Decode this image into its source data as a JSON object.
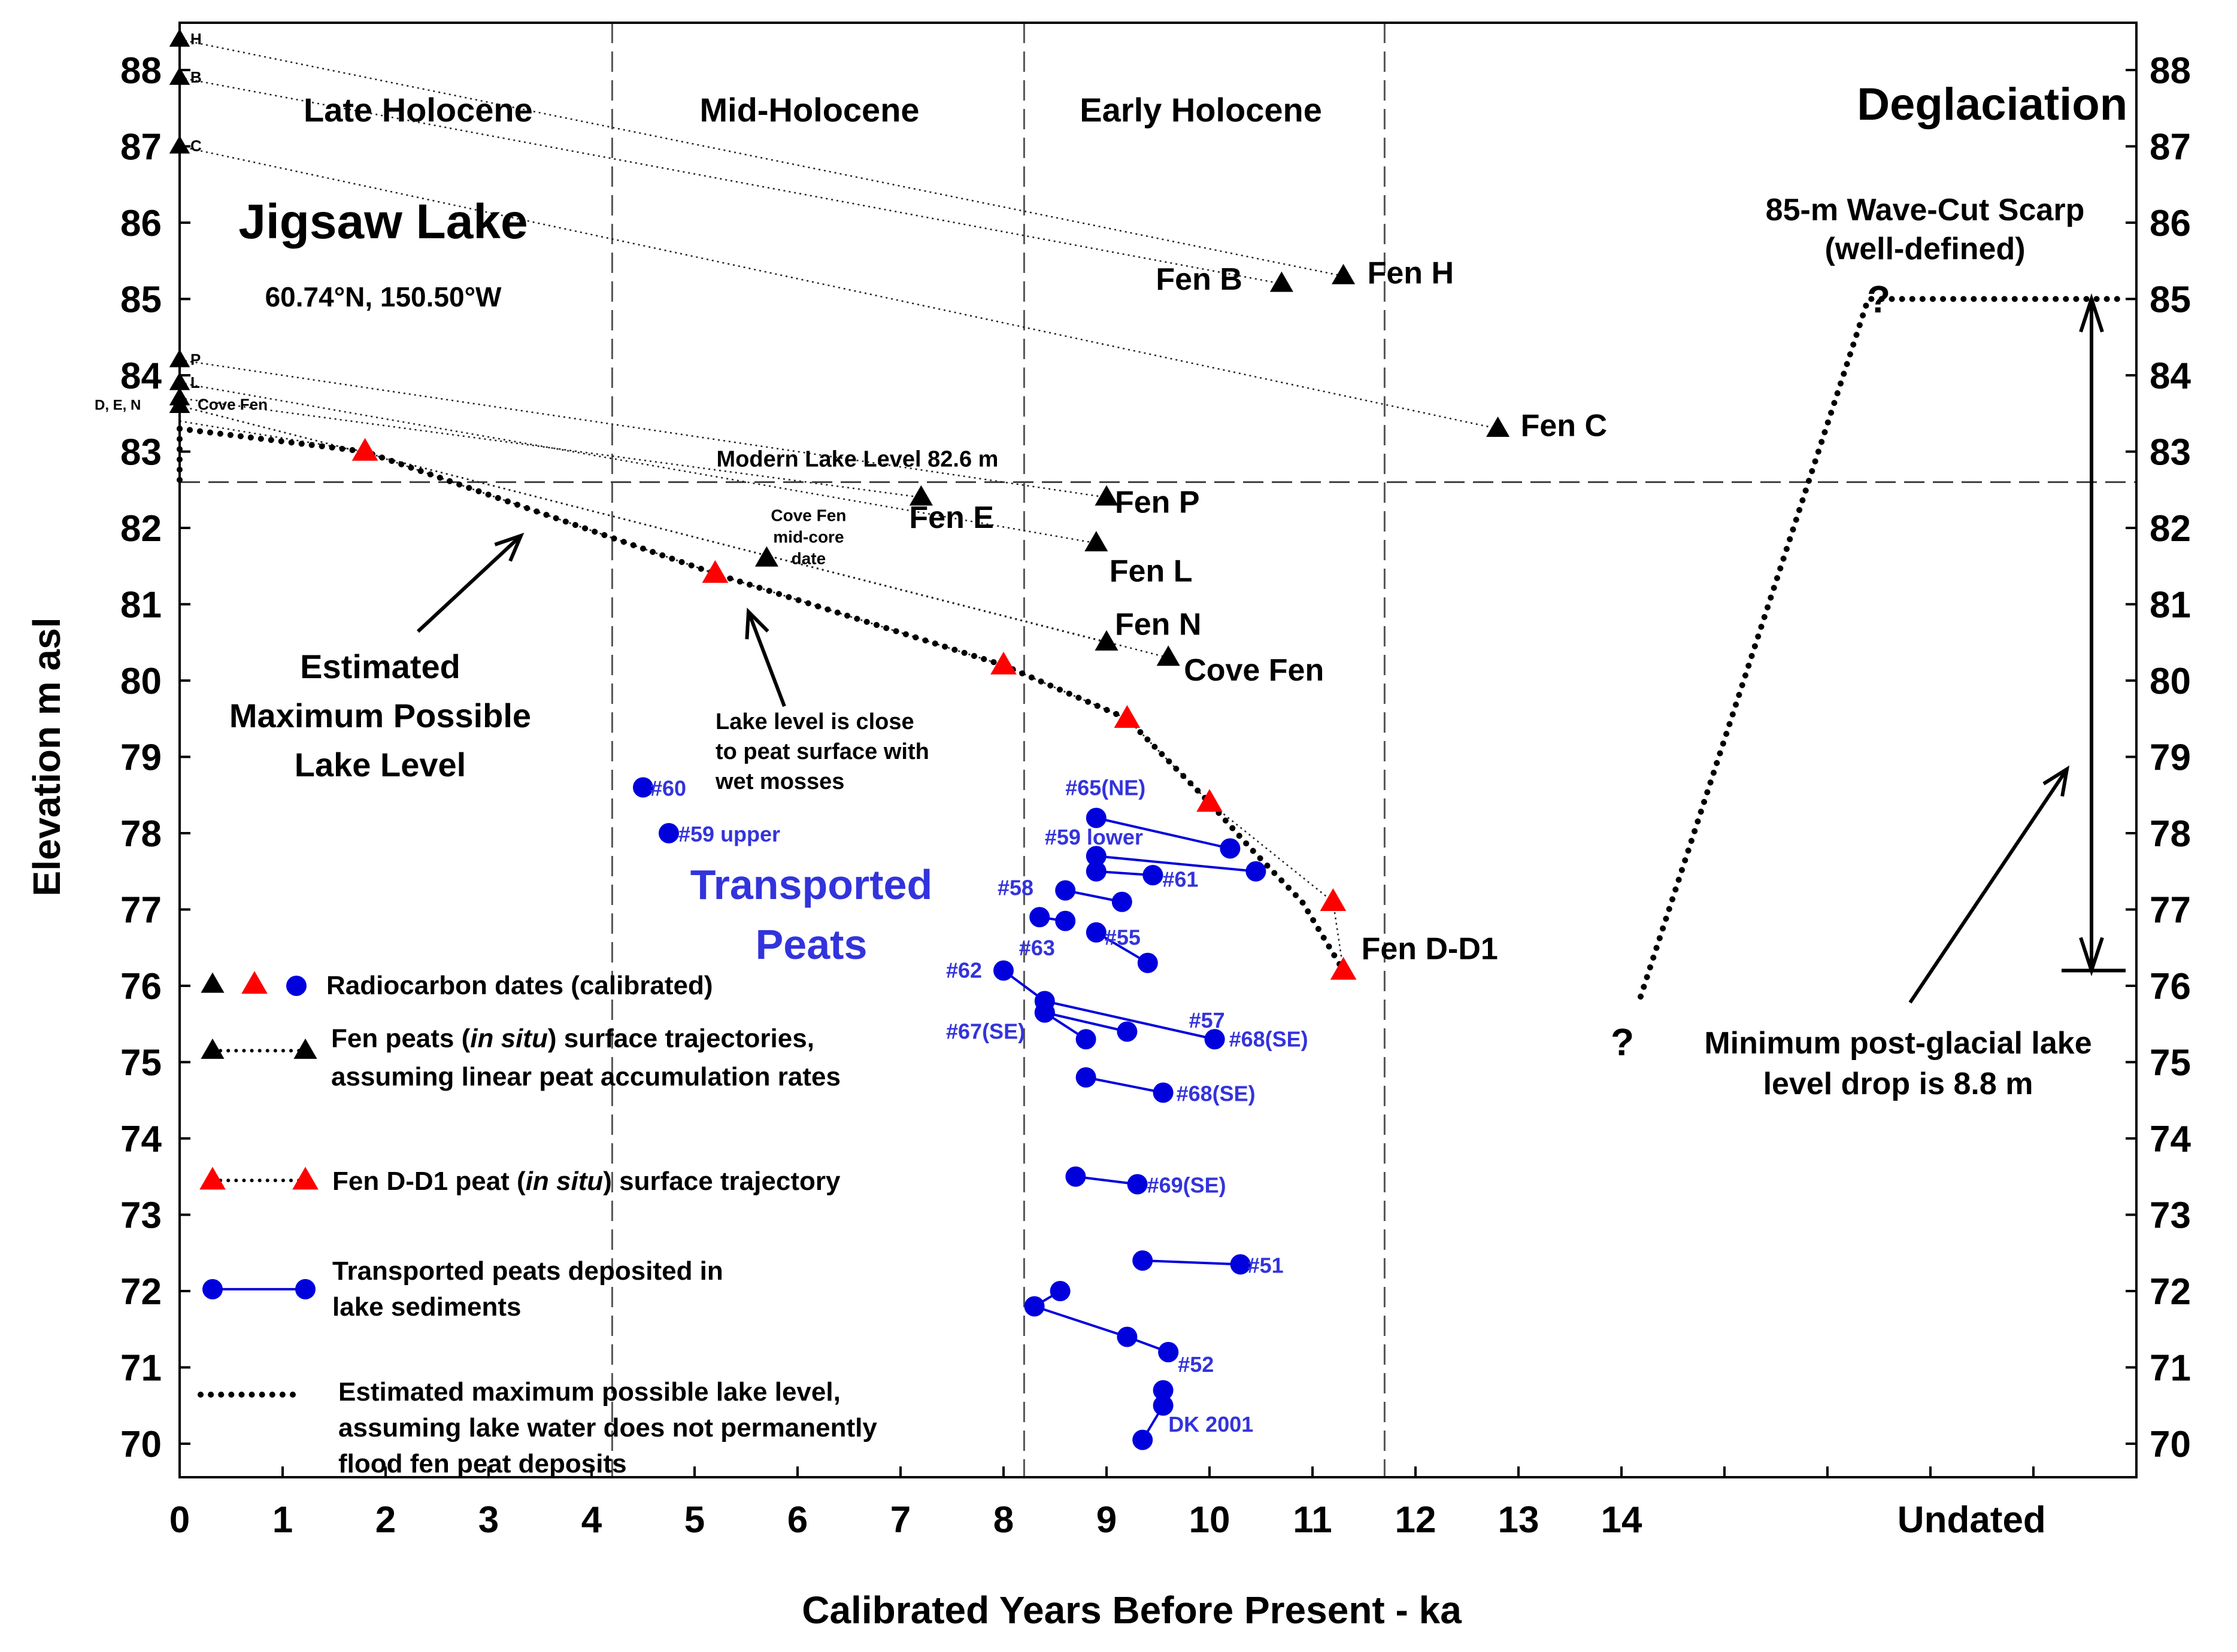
{
  "chart_data": {
    "type": "scatter",
    "title": "Jigsaw Lake",
    "subtitle": "60.74°N, 150.50°W",
    "xlabel": "Calibrated Years Before Present - ka",
    "ylabel": "Elevation m asl",
    "x_ticks": [
      "0",
      "1",
      "2",
      "3",
      "4",
      "5",
      "6",
      "7",
      "8",
      "9",
      "10",
      "11",
      "12",
      "13",
      "14"
    ],
    "x_undated_label": "Undated",
    "y_ticks": [
      "70",
      "71",
      "72",
      "73",
      "74",
      "75",
      "76",
      "77",
      "78",
      "79",
      "80",
      "81",
      "82",
      "83",
      "84",
      "85",
      "86",
      "87",
      "88"
    ],
    "xlim": [
      0,
      19
    ],
    "ylim": [
      69.7,
      88.6
    ],
    "periods": [
      {
        "label": "Late Holocene",
        "x": 2.2
      },
      {
        "label": "Mid-Holocene",
        "x": 6.0
      },
      {
        "label": "Early Holocene",
        "x": 9.8
      },
      {
        "label": "Deglaciation",
        "x": 17.6
      }
    ],
    "period_boundaries": [
      4.2,
      8.2,
      11.7
    ],
    "modern_lake_level": {
      "y": 82.6,
      "label": "Modern Lake Level 82.6 m"
    },
    "fen_surface_trajectories": [
      {
        "name": "Fen H",
        "start_label": "H",
        "x0": 0,
        "y0": 88.4,
        "x1": 11.3,
        "y1": 85.3,
        "label": "Fen H"
      },
      {
        "name": "Fen B",
        "start_label": "B",
        "x0": 0,
        "y0": 87.9,
        "x1": 10.7,
        "y1": 85.2,
        "label": "Fen B"
      },
      {
        "name": "Fen C",
        "start_label": "C",
        "x0": 0,
        "y0": 87.0,
        "x1": 12.8,
        "y1": 83.3,
        "label": "Fen C"
      },
      {
        "name": "Fen P",
        "start_label": "P",
        "x0": 0,
        "y0": 84.2,
        "x1": 9.0,
        "y1": 82.4,
        "label": "Fen P"
      },
      {
        "name": "Fen L",
        "start_label": "L",
        "x0": 0,
        "y0": 83.9,
        "x1": 8.9,
        "y1": 81.8,
        "label": "Fen L"
      },
      {
        "name": "Fen E",
        "start_label": "",
        "x0": 0,
        "y0": 83.7,
        "x1": 7.2,
        "y1": 82.4,
        "label": "Fen E"
      },
      {
        "name": "Fen N",
        "start_label": "",
        "x0": 0,
        "y0": 83.6,
        "x1": 9.0,
        "y1": 80.5,
        "label": "Fen N"
      },
      {
        "name": "Cove Fen",
        "start_label": "",
        "x0": 0,
        "y0": 83.6,
        "x1": 9.6,
        "y1": 80.3,
        "label": "Cove Fen"
      }
    ],
    "fen_start_label_den": "D, E, N",
    "fen_start_label_cove": "Cove Fen",
    "cove_fen_midcore": {
      "x": 5.7,
      "y": 81.6,
      "label": [
        "Cove Fen",
        "mid-core",
        "date"
      ]
    },
    "fen_d_d1": {
      "label": "Fen D-D1",
      "points": [
        [
          0,
          83.4
        ],
        [
          1.8,
          83.0
        ],
        [
          5.2,
          81.4
        ],
        [
          8.0,
          80.2
        ],
        [
          9.2,
          79.5
        ],
        [
          10.0,
          78.4
        ],
        [
          11.2,
          77.1
        ],
        [
          11.3,
          76.2
        ]
      ]
    },
    "max_lake_level": [
      [
        0,
        83.3
      ],
      [
        1.8,
        83.0
      ],
      [
        5.2,
        81.4
      ],
      [
        8.0,
        80.2
      ],
      [
        9.2,
        79.5
      ],
      [
        10.0,
        78.4
      ],
      [
        10.4,
        77.8
      ],
      [
        10.9,
        77.1
      ],
      [
        11.3,
        76.2
      ]
    ],
    "transported_peats": [
      {
        "label": "#60",
        "points": [
          [
            4.5,
            78.6
          ]
        ]
      },
      {
        "label": "#59 upper",
        "points": [
          [
            4.75,
            78.0
          ]
        ]
      },
      {
        "label": "#65(NE)",
        "points": [
          [
            8.9,
            78.2
          ],
          [
            10.2,
            77.8
          ]
        ]
      },
      {
        "label": "#59 lower",
        "points": [
          [
            8.9,
            77.7
          ],
          [
            10.45,
            77.5
          ]
        ]
      },
      {
        "label": "",
        "points": [
          [
            8.9,
            77.5
          ],
          [
            9.45,
            77.45
          ]
        ]
      },
      {
        "label": "#61",
        "points": [
          [
            9.45,
            77.45
          ]
        ]
      },
      {
        "label": "#58",
        "points": [
          [
            8.6,
            77.25
          ],
          [
            9.15,
            77.1
          ]
        ]
      },
      {
        "label": "#63",
        "points": [
          [
            8.35,
            76.9
          ],
          [
            8.6,
            76.85
          ]
        ]
      },
      {
        "label": "#55",
        "points": [
          [
            8.9,
            76.7
          ],
          [
            9.4,
            76.3
          ]
        ]
      },
      {
        "label": "#62",
        "points": [
          [
            8.0,
            76.2
          ],
          [
            8.4,
            75.8
          ],
          [
            10.05,
            75.3
          ]
        ]
      },
      {
        "label": "#67(SE)",
        "points": [
          [
            8.4,
            75.65
          ],
          [
            8.8,
            75.3
          ]
        ]
      },
      {
        "label": "#57",
        "points": [
          [
            8.4,
            75.65
          ],
          [
            9.2,
            75.4
          ]
        ]
      },
      {
        "label": "#68(SE)",
        "points": [
          [
            10.05,
            75.3
          ]
        ]
      },
      {
        "label": "#68(SE)",
        "points": [
          [
            8.8,
            74.8
          ],
          [
            9.55,
            74.6
          ]
        ]
      },
      {
        "label": "#69(SE)",
        "points": [
          [
            8.7,
            73.5
          ],
          [
            9.3,
            73.4
          ]
        ]
      },
      {
        "label": "#51",
        "points": [
          [
            9.35,
            72.4
          ],
          [
            10.3,
            72.35
          ]
        ]
      },
      {
        "label": "",
        "points": [
          [
            8.55,
            72.0
          ],
          [
            8.3,
            71.8
          ],
          [
            9.2,
            71.4
          ],
          [
            9.6,
            71.2
          ]
        ]
      },
      {
        "label": "#52",
        "points": [
          [
            9.6,
            71.2
          ]
        ]
      },
      {
        "label": "DK 2001",
        "points": [
          [
            9.55,
            70.7
          ],
          [
            9.55,
            70.5
          ],
          [
            9.35,
            70.05
          ]
        ]
      }
    ],
    "annotations": {
      "transported": [
        "Transported",
        "Peats"
      ],
      "estimated_max": [
        "Estimated",
        "Maximum Possible",
        "Lake Level"
      ],
      "close_to_surface": [
        "Lake level is close",
        "to peat surface with",
        "wet mosses"
      ],
      "scarp": [
        "85-m Wave-Cut Scarp",
        "(well-defined)"
      ],
      "drop": [
        "Minimum post-glacial lake",
        "level drop is 8.8 m"
      ],
      "question": "?"
    },
    "legend": [
      {
        "kind": "markers",
        "text": [
          "Radiocarbon dates (calibrated)"
        ]
      },
      {
        "kind": "fen",
        "text": [
          "Fen peats (",
          "in situ",
          ") surface trajectories,",
          "assuming linear peat accumulation rates"
        ]
      },
      {
        "kind": "d1",
        "text": [
          "Fen D-D1 peat (",
          "in situ",
          ") surface trajectory"
        ]
      },
      {
        "kind": "transported",
        "text": [
          "Transported peats deposited in",
          "lake sediments"
        ]
      },
      {
        "kind": "maxlevel",
        "text": [
          "Estimated maximum possible lake level,",
          "assuming lake water does not permanently",
          "flood fen peat deposits"
        ]
      }
    ],
    "colors": {
      "fen": "#000000",
      "d1": "#ff0000",
      "transported": "#0000dd",
      "text_blue": "#3333dd"
    }
  }
}
